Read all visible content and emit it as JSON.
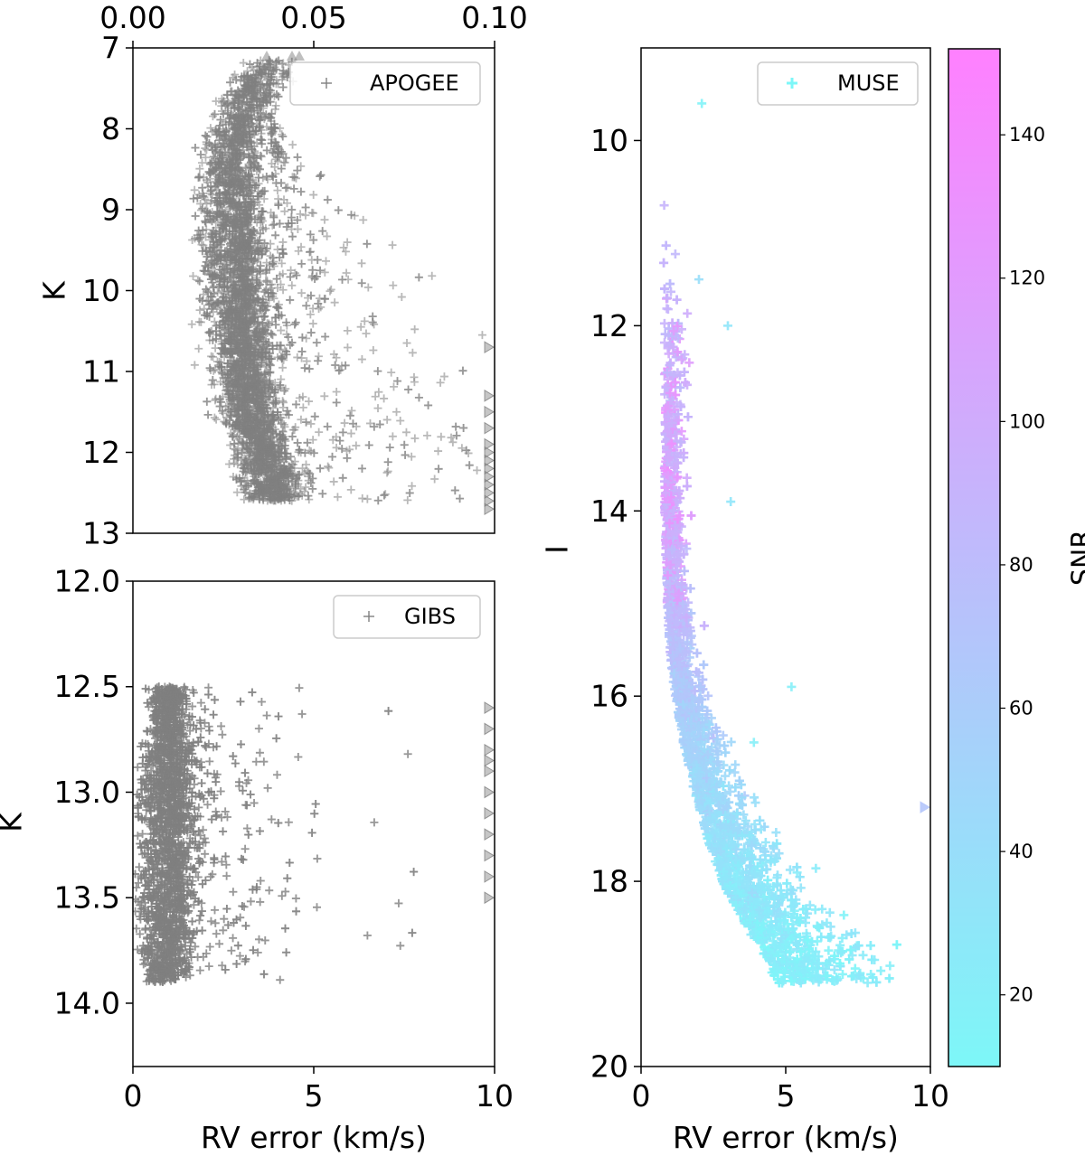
{
  "chart_data": [
    {
      "id": "apogee",
      "type": "scatter",
      "legend": "APOGEE",
      "marker": "+",
      "color": "#808080",
      "xlabel": "",
      "ylabel": "K",
      "xlim": [
        0,
        10
      ],
      "ylim": [
        13,
        7
      ],
      "xticks": [],
      "yticks": [
        "7",
        "8",
        "9",
        "10",
        "11",
        "12",
        "13"
      ],
      "top_axis": {
        "xlim": [
          0,
          0.1
        ],
        "ticks": [
          "0.00",
          "0.05",
          "0.10"
        ]
      },
      "density": [
        {
          "k": 7.2,
          "lo": 2.9,
          "hi": 4.6
        },
        {
          "k": 7.5,
          "lo": 2.6,
          "hi": 3.9
        },
        {
          "k": 8.0,
          "lo": 2.0,
          "hi": 3.8
        },
        {
          "k": 8.5,
          "lo": 1.8,
          "hi": 3.8
        },
        {
          "k": 9.0,
          "lo": 1.8,
          "hi": 3.8
        },
        {
          "k": 9.5,
          "lo": 1.8,
          "hi": 3.9
        },
        {
          "k": 10.0,
          "lo": 1.9,
          "hi": 4.0
        },
        {
          "k": 10.5,
          "lo": 2.0,
          "hi": 4.0
        },
        {
          "k": 11.0,
          "lo": 2.2,
          "hi": 4.0
        },
        {
          "k": 11.5,
          "lo": 2.4,
          "hi": 4.2
        },
        {
          "k": 12.0,
          "lo": 2.7,
          "hi": 4.5
        },
        {
          "k": 12.3,
          "lo": 2.9,
          "hi": 4.8
        }
      ],
      "outliers_at_limit": [
        10.7,
        11.3,
        11.5,
        11.7,
        11.9,
        12.0,
        12.1,
        12.2,
        12.3,
        12.4,
        12.5,
        12.6,
        12.7
      ],
      "outliers_top": [
        3.7,
        4.4,
        4.6
      ]
    },
    {
      "id": "gibs",
      "type": "scatter",
      "legend": "GIBS",
      "marker": "+",
      "color": "#808080",
      "xlabel": "RV error (km/s)",
      "ylabel": "K",
      "xlim": [
        0,
        10
      ],
      "ylim": [
        14.3,
        12.0
      ],
      "xticks": [
        "0",
        "5",
        "10"
      ],
      "yticks": [
        "12.0",
        "12.5",
        "13.0",
        "13.5",
        "14.0"
      ],
      "density": [
        {
          "k": 12.55,
          "lo": 0.5,
          "hi": 1.5
        },
        {
          "k": 12.8,
          "lo": 0.3,
          "hi": 1.7
        },
        {
          "k": 13.1,
          "lo": 0.2,
          "hi": 1.9
        },
        {
          "k": 13.4,
          "lo": 0.2,
          "hi": 1.8
        },
        {
          "k": 13.7,
          "lo": 0.3,
          "hi": 1.6
        },
        {
          "k": 13.85,
          "lo": 0.4,
          "hi": 1.4
        }
      ],
      "outliers_at_limit": [
        12.6,
        12.7,
        12.8,
        12.85,
        12.9,
        13.0,
        13.1,
        13.2,
        13.3,
        13.4,
        13.5
      ]
    },
    {
      "id": "muse",
      "type": "scatter",
      "legend": "MUSE",
      "marker": "+",
      "color_by": "SNR",
      "xlabel": "RV error (km/s)",
      "ylabel": "I",
      "xlim": [
        0,
        10
      ],
      "ylim": [
        20,
        9
      ],
      "xticks": [
        "0",
        "5",
        "10"
      ],
      "yticks": [
        "10",
        "12",
        "14",
        "16",
        "18",
        "20"
      ],
      "trend": [
        {
          "i": 11.0,
          "rv": 0.8,
          "snr": 85
        },
        {
          "i": 12.0,
          "rv": 0.9,
          "snr": 90
        },
        {
          "i": 13.0,
          "rv": 0.9,
          "snr": 95
        },
        {
          "i": 14.0,
          "rv": 0.9,
          "snr": 95
        },
        {
          "i": 15.0,
          "rv": 1.0,
          "snr": 85
        },
        {
          "i": 15.5,
          "rv": 1.1,
          "snr": 75
        },
        {
          "i": 16.0,
          "rv": 1.3,
          "snr": 65
        },
        {
          "i": 16.5,
          "rv": 1.6,
          "snr": 55
        },
        {
          "i": 17.0,
          "rv": 2.0,
          "snr": 45
        },
        {
          "i": 17.5,
          "rv": 2.5,
          "snr": 38
        },
        {
          "i": 18.0,
          "rv": 3.1,
          "snr": 30
        },
        {
          "i": 18.5,
          "rv": 4.0,
          "snr": 24
        },
        {
          "i": 18.9,
          "rv": 5.0,
          "snr": 20
        }
      ],
      "outliers_at_limit": [
        17.2
      ],
      "colorbar": {
        "label": "SNR",
        "range": [
          10,
          152
        ],
        "ticks": [
          "20",
          "40",
          "60",
          "80",
          "100",
          "120",
          "140"
        ],
        "colors": [
          "#7df7f8",
          "#ff80ff"
        ]
      }
    }
  ]
}
